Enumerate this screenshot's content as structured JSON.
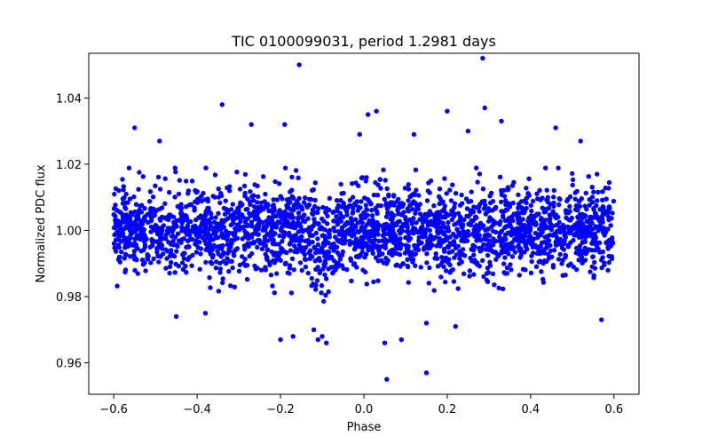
{
  "chart_data": {
    "type": "scatter",
    "title": "TIC 0100099031, period 1.2981 days",
    "xlabel": "Phase",
    "ylabel": "Normalized PDC flux",
    "xlim": [
      -0.66,
      0.66
    ],
    "ylim": [
      0.9505,
      1.0535
    ],
    "xticks": [
      -0.6,
      -0.4,
      -0.2,
      0.0,
      0.2,
      0.4,
      0.6
    ],
    "xtick_labels": [
      "−0.6",
      "−0.4",
      "−0.2",
      "0.0",
      "0.2",
      "0.4",
      "0.6"
    ],
    "yticks": [
      0.96,
      0.98,
      1.0,
      1.02,
      1.04
    ],
    "ytick_labels": [
      "0.96",
      "0.98",
      "1.00",
      "1.02",
      "1.04"
    ],
    "grid": false,
    "series": [
      {
        "name": "flux",
        "color": "#0000ff",
        "dense_band": {
          "x_range": [
            -0.6,
            0.6
          ],
          "center": 1.0,
          "scatter": 0.0065,
          "count": 2600
        },
        "dip": {
          "center": -0.1,
          "width": 0.03,
          "depth": 0.006
        },
        "points": [
          {
            "x": -0.155,
            "y": 1.05
          },
          {
            "x": 0.285,
            "y": 1.052
          },
          {
            "x": -0.34,
            "y": 1.038
          },
          {
            "x": 0.29,
            "y": 1.037
          },
          {
            "x": 0.01,
            "y": 1.035
          },
          {
            "x": 0.03,
            "y": 1.036
          },
          {
            "x": 0.2,
            "y": 1.036
          },
          {
            "x": -0.55,
            "y": 1.031
          },
          {
            "x": -0.27,
            "y": 1.032
          },
          {
            "x": -0.19,
            "y": 1.032
          },
          {
            "x": 0.33,
            "y": 1.033
          },
          {
            "x": 0.46,
            "y": 1.031
          },
          {
            "x": -0.01,
            "y": 1.029
          },
          {
            "x": 0.12,
            "y": 1.029
          },
          {
            "x": 0.25,
            "y": 1.03
          },
          {
            "x": -0.49,
            "y": 1.027
          },
          {
            "x": 0.52,
            "y": 1.027
          },
          {
            "x": -0.17,
            "y": 0.968
          },
          {
            "x": -0.2,
            "y": 0.967
          },
          {
            "x": -0.09,
            "y": 0.966
          },
          {
            "x": -0.1,
            "y": 0.968
          },
          {
            "x": -0.11,
            "y": 0.967
          },
          {
            "x": -0.12,
            "y": 0.97
          },
          {
            "x": 0.09,
            "y": 0.967
          },
          {
            "x": 0.22,
            "y": 0.971
          },
          {
            "x": -0.45,
            "y": 0.974
          },
          {
            "x": -0.38,
            "y": 0.975
          },
          {
            "x": 0.15,
            "y": 0.972
          },
          {
            "x": 0.57,
            "y": 0.973
          },
          {
            "x": 0.05,
            "y": 0.966
          },
          {
            "x": 0.055,
            "y": 0.955
          },
          {
            "x": 0.15,
            "y": 0.957
          }
        ]
      }
    ]
  }
}
